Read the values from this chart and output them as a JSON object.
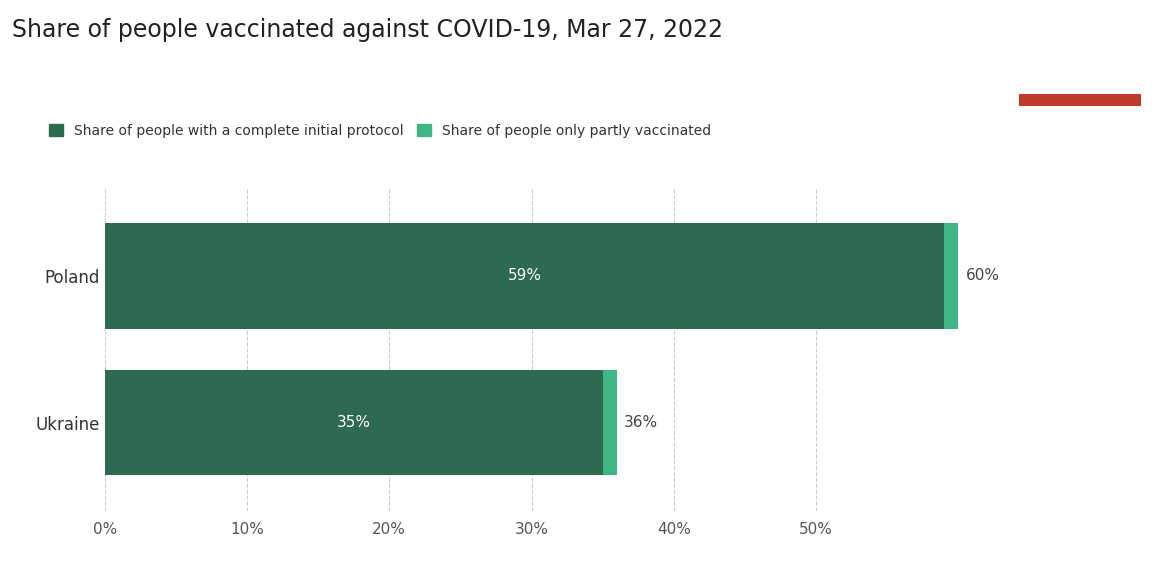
{
  "title": "Share of people vaccinated against COVID-19, Mar 27, 2022",
  "categories": [
    "Poland",
    "Ukraine"
  ],
  "complete_values": [
    59,
    35
  ],
  "partial_values": [
    1,
    1
  ],
  "complete_total_labels": [
    "60%",
    "36%"
  ],
  "complete_bar_labels": [
    "59%",
    "35%"
  ],
  "color_complete": "#2d6a4f",
  "color_partial": "#40b585",
  "background_color": "#ffffff",
  "legend_complete": "Share of people with a complete initial protocol",
  "legend_partial": "Share of people only partly vaccinated",
  "xlim": [
    0,
    63
  ],
  "xtick_values": [
    0,
    10,
    20,
    30,
    40,
    50
  ],
  "xtick_labels": [
    "0%",
    "10%",
    "20%",
    "30%",
    "40%",
    "50%"
  ],
  "title_fontsize": 17,
  "label_fontsize": 11,
  "tick_fontsize": 11,
  "owid_box_color": "#1a3a5c",
  "owid_red": "#c0392b"
}
